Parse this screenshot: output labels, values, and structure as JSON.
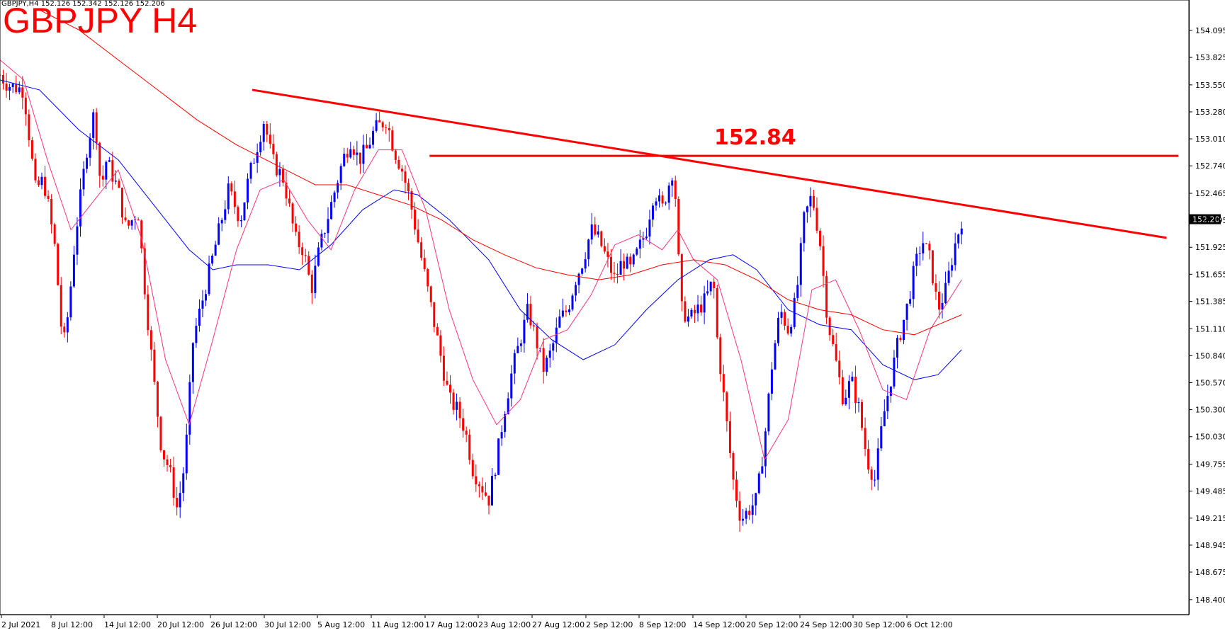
{
  "header": {
    "info": "GBPJPY,H4  152.126 152.342 152.126 152.206",
    "title": "GBPJPY H4"
  },
  "chart_data": {
    "type": "candlestick",
    "symbol": "GBPJPY",
    "timeframe": "H4",
    "ylim": [
      148.25,
      154.3
    ],
    "yticks": [
      "154.095",
      "153.825",
      "153.550",
      "153.280",
      "153.010",
      "152.740",
      "152.465",
      "152.195",
      "151.925",
      "151.655",
      "151.385",
      "151.110",
      "150.840",
      "150.570",
      "150.300",
      "150.030",
      "149.755",
      "149.485",
      "149.215",
      "148.945",
      "148.675",
      "148.400"
    ],
    "xticks": [
      "2 Jul 2021",
      "8 Jul 12:00",
      "14 Jul 12:00",
      "20 Jul 12:00",
      "26 Jul 12:00",
      "30 Jul 12:00",
      "5 Aug 12:00",
      "11 Aug 12:00",
      "17 Aug 12:00",
      "23 Aug 12:00",
      "27 Aug 12:00",
      "2 Sep 12:00",
      "8 Sep 12:00",
      "14 Sep 12:00",
      "20 Sep 12:00",
      "24 Sep 12:00",
      "30 Sep 12:00",
      "6 Oct 12:00"
    ],
    "current_price": "152.206",
    "current_price_value": 152.206,
    "level_label": "152.84",
    "level_value": 152.84,
    "colors": {
      "bull": "#0000ff",
      "bear": "#ff0000",
      "ma_blue": "#0000ff",
      "ma_pink": "#ff3377",
      "ma_red": "#ff0000",
      "annotation": "#ff0000"
    },
    "price_path": [
      [
        0,
        153.65
      ],
      [
        0.01,
        153.55
      ],
      [
        0.03,
        153.5
      ],
      [
        0.045,
        152.5
      ],
      [
        0.055,
        152.6
      ],
      [
        0.06,
        152.4
      ],
      [
        0.07,
        151.9
      ],
      [
        0.075,
        151.4
      ],
      [
        0.08,
        150.9
      ],
      [
        0.087,
        151.3
      ],
      [
        0.095,
        152.0
      ],
      [
        0.11,
        152.9
      ],
      [
        0.12,
        153.3
      ],
      [
        0.128,
        152.5
      ],
      [
        0.135,
        152.8
      ],
      [
        0.15,
        152.5
      ],
      [
        0.16,
        152.1
      ],
      [
        0.175,
        152.3
      ],
      [
        0.185,
        151.4
      ],
      [
        0.195,
        150.6
      ],
      [
        0.205,
        149.9
      ],
      [
        0.215,
        149.7
      ],
      [
        0.225,
        149.3
      ],
      [
        0.235,
        149.8
      ],
      [
        0.245,
        151.0
      ],
      [
        0.26,
        151.5
      ],
      [
        0.275,
        152.0
      ],
      [
        0.29,
        152.5
      ],
      [
        0.305,
        152.2
      ],
      [
        0.315,
        152.6
      ],
      [
        0.325,
        152.9
      ],
      [
        0.335,
        153.2
      ],
      [
        0.345,
        152.8
      ],
      [
        0.36,
        152.6
      ],
      [
        0.375,
        152.0
      ],
      [
        0.385,
        151.9
      ],
      [
        0.395,
        151.5
      ],
      [
        0.405,
        151.9
      ],
      [
        0.415,
        152.2
      ],
      [
        0.425,
        152.5
      ],
      [
        0.435,
        152.8
      ],
      [
        0.445,
        153.0
      ],
      [
        0.455,
        152.8
      ],
      [
        0.465,
        152.9
      ],
      [
        0.475,
        153.1
      ],
      [
        0.49,
        153.2
      ],
      [
        0.5,
        152.9
      ],
      [
        0.51,
        152.7
      ],
      [
        0.52,
        152.4
      ],
      [
        0.53,
        152.0
      ],
      [
        0.54,
        151.6
      ],
      [
        0.55,
        151.2
      ],
      [
        0.56,
        150.8
      ],
      [
        0.57,
        150.4
      ],
      [
        0.58,
        150.3
      ],
      [
        0.59,
        150.1
      ],
      [
        0.6,
        149.7
      ],
      [
        0.61,
        149.55
      ],
      [
        0.62,
        149.4
      ],
      [
        0.63,
        149.8
      ],
      [
        0.64,
        150.3
      ],
      [
        0.65,
        150.7
      ],
      [
        0.66,
        151.0
      ],
      [
        0.67,
        151.3
      ],
      [
        0.68,
        151.0
      ],
      [
        0.69,
        150.7
      ],
      [
        0.7,
        150.9
      ],
      [
        0.71,
        151.2
      ],
      [
        0.72,
        151.3
      ],
      [
        0.73,
        151.6
      ],
      [
        0.74,
        151.8
      ],
      [
        0.75,
        152.1
      ],
      [
        0.76,
        152.0
      ],
      [
        0.77,
        151.8
      ],
      [
        0.78,
        151.6
      ],
      [
        0.79,
        151.8
      ],
      [
        0.8,
        151.7
      ],
      [
        0.81,
        151.9
      ],
      [
        0.82,
        152.1
      ],
      [
        0.83,
        152.5
      ],
      [
        0.84,
        152.3
      ],
      [
        0.85,
        152.6
      ],
      [
        0.855,
        152.75
      ],
      [
        0.86,
        151.9
      ],
      [
        0.865,
        151.3
      ],
      [
        0.875,
        151.2
      ],
      [
        0.885,
        151.3
      ],
      [
        0.895,
        151.4
      ],
      [
        0.905,
        151.6
      ],
      [
        0.91,
        151.0
      ],
      [
        0.92,
        150.3
      ],
      [
        0.93,
        149.6
      ],
      [
        0.94,
        149.2
      ],
      [
        0.95,
        149.3
      ],
      [
        0.96,
        149.4
      ],
      [
        0.97,
        150.0
      ],
      [
        0.98,
        150.8
      ],
      [
        0.99,
        151.3
      ],
      [
        1.0,
        151.1
      ],
      [
        1.01,
        151.4
      ],
      [
        1.02,
        152.2
      ],
      [
        1.03,
        152.45
      ],
      [
        1.04,
        152.0
      ],
      [
        1.05,
        151.2
      ],
      [
        1.06,
        150.8
      ],
      [
        1.07,
        150.4
      ],
      [
        1.08,
        150.6
      ],
      [
        1.09,
        150.3
      ],
      [
        1.1,
        149.8
      ],
      [
        1.11,
        149.6
      ],
      [
        1.12,
        150.2
      ],
      [
        1.13,
        150.6
      ],
      [
        1.14,
        151.0
      ],
      [
        1.15,
        151.3
      ],
      [
        1.16,
        151.7
      ],
      [
        1.17,
        152.0
      ],
      [
        1.18,
        151.8
      ],
      [
        1.19,
        151.3
      ],
      [
        1.2,
        151.5
      ],
      [
        1.21,
        151.9
      ],
      [
        1.22,
        152.2
      ]
    ],
    "ma_blue": [
      [
        0,
        153.6
      ],
      [
        0.05,
        153.5
      ],
      [
        0.1,
        153.1
      ],
      [
        0.15,
        152.8
      ],
      [
        0.2,
        152.3
      ],
      [
        0.24,
        151.9
      ],
      [
        0.27,
        151.7
      ],
      [
        0.3,
        151.75
      ],
      [
        0.34,
        151.75
      ],
      [
        0.38,
        151.7
      ],
      [
        0.42,
        151.95
      ],
      [
        0.46,
        152.3
      ],
      [
        0.5,
        152.5
      ],
      [
        0.53,
        152.45
      ],
      [
        0.57,
        152.2
      ],
      [
        0.62,
        151.8
      ],
      [
        0.66,
        151.3
      ],
      [
        0.7,
        151.0
      ],
      [
        0.74,
        150.8
      ],
      [
        0.78,
        150.95
      ],
      [
        0.82,
        151.3
      ],
      [
        0.86,
        151.6
      ],
      [
        0.9,
        151.8
      ],
      [
        0.93,
        151.85
      ],
      [
        0.96,
        151.7
      ],
      [
        1.0,
        151.3
      ],
      [
        1.04,
        151.15
      ],
      [
        1.08,
        151.1
      ],
      [
        1.12,
        150.75
      ],
      [
        1.16,
        150.6
      ],
      [
        1.19,
        150.65
      ],
      [
        1.22,
        150.9
      ]
    ],
    "ma_pink": [
      [
        0,
        153.8
      ],
      [
        0.03,
        153.6
      ],
      [
        0.06,
        152.8
      ],
      [
        0.09,
        152.1
      ],
      [
        0.12,
        152.4
      ],
      [
        0.15,
        152.7
      ],
      [
        0.18,
        152.0
      ],
      [
        0.21,
        150.8
      ],
      [
        0.24,
        150.15
      ],
      [
        0.27,
        151.0
      ],
      [
        0.3,
        151.9
      ],
      [
        0.33,
        152.5
      ],
      [
        0.36,
        152.6
      ],
      [
        0.39,
        152.2
      ],
      [
        0.42,
        151.9
      ],
      [
        0.45,
        152.5
      ],
      [
        0.48,
        152.9
      ],
      [
        0.51,
        152.9
      ],
      [
        0.54,
        152.3
      ],
      [
        0.57,
        151.3
      ],
      [
        0.6,
        150.6
      ],
      [
        0.63,
        150.15
      ],
      [
        0.66,
        150.4
      ],
      [
        0.69,
        151.0
      ],
      [
        0.72,
        151.1
      ],
      [
        0.75,
        151.45
      ],
      [
        0.78,
        151.95
      ],
      [
        0.81,
        152.05
      ],
      [
        0.84,
        151.9
      ],
      [
        0.86,
        152.1
      ],
      [
        0.88,
        151.8
      ],
      [
        0.91,
        151.6
      ],
      [
        0.94,
        150.8
      ],
      [
        0.97,
        149.8
      ],
      [
        1.0,
        150.2
      ],
      [
        1.03,
        151.5
      ],
      [
        1.06,
        151.6
      ],
      [
        1.09,
        151.1
      ],
      [
        1.12,
        150.5
      ],
      [
        1.15,
        150.4
      ],
      [
        1.18,
        151.1
      ],
      [
        1.22,
        151.6
      ]
    ],
    "ma_red": [
      [
        0.05,
        154.3
      ],
      [
        0.1,
        154.1
      ],
      [
        0.15,
        153.8
      ],
      [
        0.2,
        153.5
      ],
      [
        0.25,
        153.2
      ],
      [
        0.3,
        152.95
      ],
      [
        0.35,
        152.75
      ],
      [
        0.4,
        152.55
      ],
      [
        0.44,
        152.55
      ],
      [
        0.48,
        152.45
      ],
      [
        0.52,
        152.35
      ],
      [
        0.56,
        152.2
      ],
      [
        0.6,
        152.0
      ],
      [
        0.64,
        151.85
      ],
      [
        0.68,
        151.72
      ],
      [
        0.72,
        151.65
      ],
      [
        0.76,
        151.6
      ],
      [
        0.8,
        151.65
      ],
      [
        0.84,
        151.75
      ],
      [
        0.88,
        151.8
      ],
      [
        0.92,
        151.75
      ],
      [
        0.96,
        151.6
      ],
      [
        1.0,
        151.4
      ],
      [
        1.04,
        151.3
      ],
      [
        1.08,
        151.25
      ],
      [
        1.12,
        151.1
      ],
      [
        1.16,
        151.05
      ],
      [
        1.19,
        151.15
      ],
      [
        1.22,
        151.25
      ]
    ],
    "trendline": [
      [
        0.32,
        153.5
      ],
      [
        1.48,
        152.02
      ]
    ],
    "level_line_xrange": [
      0.545,
      1.495
    ]
  }
}
